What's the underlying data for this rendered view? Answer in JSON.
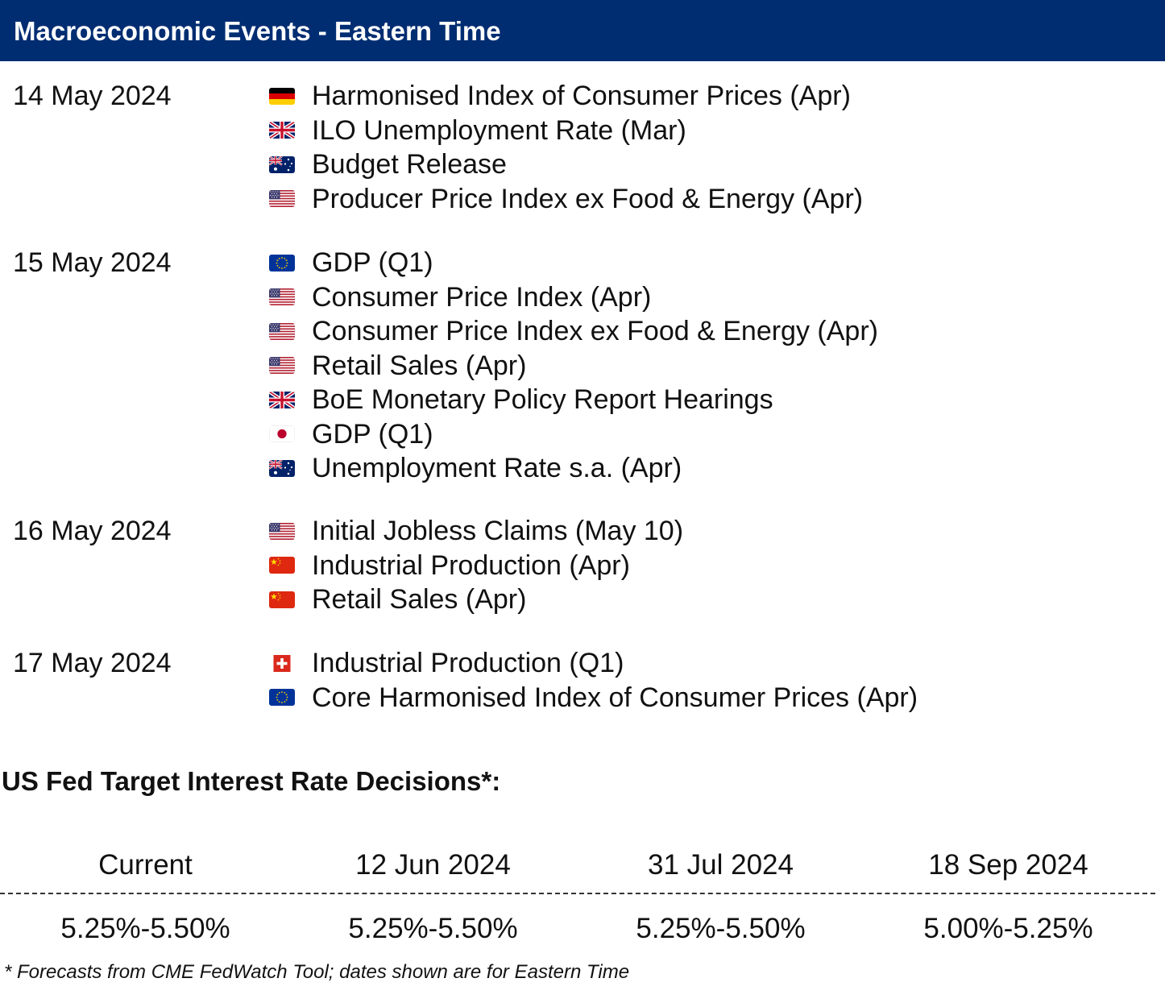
{
  "header": {
    "title": "Macroeconomic Events - Eastern Time"
  },
  "days": [
    {
      "date": "14 May 2024",
      "events": [
        {
          "flag": "germany-flag-icon",
          "label": "Harmonised Index of Consumer Prices (Apr)"
        },
        {
          "flag": "uk-flag-icon",
          "label": "ILO Unemployment Rate (Mar)"
        },
        {
          "flag": "australia-flag-icon",
          "label": "Budget Release"
        },
        {
          "flag": "us-flag-icon",
          "label": "Producer Price Index ex Food & Energy (Apr)"
        }
      ]
    },
    {
      "date": "15 May 2024",
      "events": [
        {
          "flag": "eu-flag-icon",
          "label": "GDP (Q1)"
        },
        {
          "flag": "us-flag-icon",
          "label": "Consumer Price Index (Apr)"
        },
        {
          "flag": "us-flag-icon",
          "label": "Consumer Price Index ex Food & Energy (Apr)"
        },
        {
          "flag": "us-flag-icon",
          "label": "Retail Sales (Apr)"
        },
        {
          "flag": "uk-flag-icon",
          "label": "BoE Monetary Policy Report Hearings"
        },
        {
          "flag": "japan-flag-icon",
          "label": "GDP (Q1)"
        },
        {
          "flag": "australia-flag-icon",
          "label": "Unemployment Rate s.a. (Apr)"
        }
      ]
    },
    {
      "date": "16 May 2024",
      "events": [
        {
          "flag": "us-flag-icon",
          "label": "Initial Jobless Claims (May 10)"
        },
        {
          "flag": "china-flag-icon",
          "label": "Industrial Production (Apr)"
        },
        {
          "flag": "china-flag-icon",
          "label": "Retail Sales (Apr)"
        }
      ]
    },
    {
      "date": "17 May 2024",
      "events": [
        {
          "flag": "switzerland-flag-icon",
          "label": "Industrial Production (Q1)"
        },
        {
          "flag": "eu-flag-icon",
          "label": "Core Harmonised Index of Consumer Prices (Apr)"
        }
      ]
    }
  ],
  "fed": {
    "title": "US Fed Target Interest Rate Decisions*:",
    "columns": [
      "Current",
      "12 Jun 2024",
      "31 Jul 2024",
      "18 Sep 2024"
    ],
    "values": [
      "5.25%-5.50%",
      "5.25%-5.50%",
      "5.25%-5.50%",
      "5.00%-5.25%"
    ],
    "footnote": "* Forecasts from CME FedWatch Tool; dates shown are for Eastern Time"
  },
  "colors": {
    "header_bg": "#002d72",
    "header_text": "#ffffff",
    "text": "#111111"
  }
}
